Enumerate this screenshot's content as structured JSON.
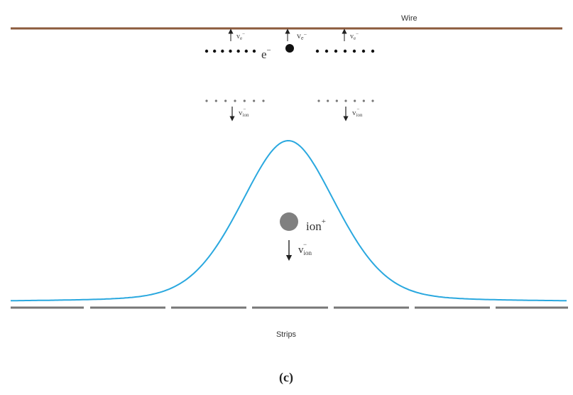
{
  "wire_label": "Wire",
  "strips_label": "Strips",
  "caption": "(c)",
  "electron": {
    "symbol": "e",
    "charge": "−"
  },
  "ion": {
    "symbol": "ion",
    "charge": "+"
  },
  "velocities": [
    {
      "symbol": "v",
      "subscript": "e",
      "superscript": "−"
    },
    {
      "symbol": "v",
      "subscript": "e",
      "superscript": "−"
    },
    {
      "symbol": "v",
      "subscript": "e",
      "superscript": "−"
    },
    {
      "symbol": "v",
      "subscript": "ion",
      "superscript": "−"
    },
    {
      "symbol": "v",
      "subscript": "ion",
      "superscript": "−"
    },
    {
      "symbol": "v",
      "subscript": "ion",
      "superscript": "−"
    }
  ]
}
